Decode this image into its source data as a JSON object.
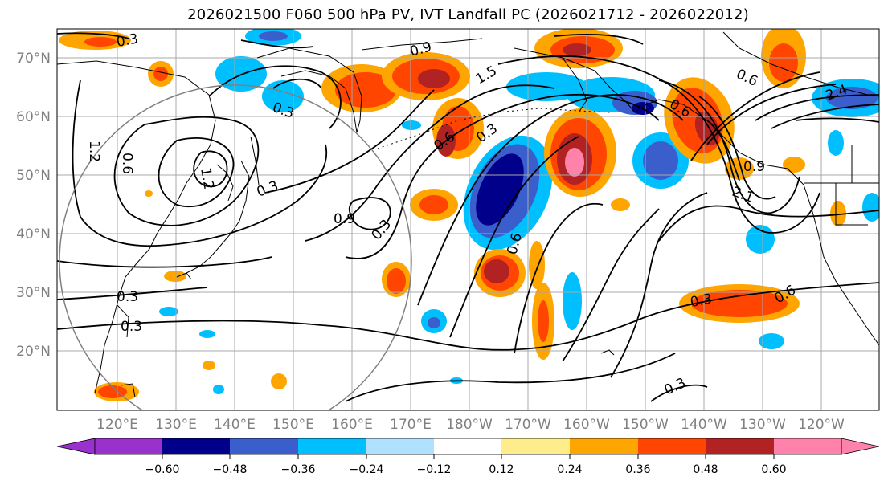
{
  "title": "2026021500 F060 500 hPa PV, IVT Landfall PC (2026021712 - 2026022012)",
  "map": {
    "lat_labels": [
      "70°N",
      "60°N",
      "50°N",
      "40°N",
      "30°N",
      "20°N"
    ],
    "lon_labels": [
      "120°E",
      "130°E",
      "140°E",
      "150°E",
      "160°E",
      "170°E",
      "180°W",
      "170°W",
      "160°W",
      "150°W",
      "140°W",
      "130°W",
      "120°W"
    ],
    "contour_labels": [
      "0.3",
      "0.6",
      "0.9",
      "1.2",
      "1.5",
      "0.3",
      "0.3",
      "0.9",
      "0.3",
      "0.6",
      "0.3",
      "0.3",
      "0.3",
      "0.6",
      "0.6",
      "2.1",
      "2.4",
      "0.6",
      "0.9",
      "0.3",
      "1.2",
      "0.6",
      "0.3"
    ]
  },
  "colorbar": {
    "ticks": [
      "−0.60",
      "−0.48",
      "−0.36",
      "−0.24",
      "−0.12",
      "0.12",
      "0.24",
      "0.36",
      "0.48",
      "0.60"
    ],
    "colors": {
      "under": "#9932cc",
      "b1": "#00008b",
      "b2": "#3a5fcd",
      "b3": "#00bfff",
      "b4": "#b0e2ff",
      "b5": "#ffffff",
      "b6": "#ffec8b",
      "b7": "#ffa500",
      "b8": "#ff4500",
      "b9": "#b22222",
      "over": "#ff82ab"
    }
  }
}
